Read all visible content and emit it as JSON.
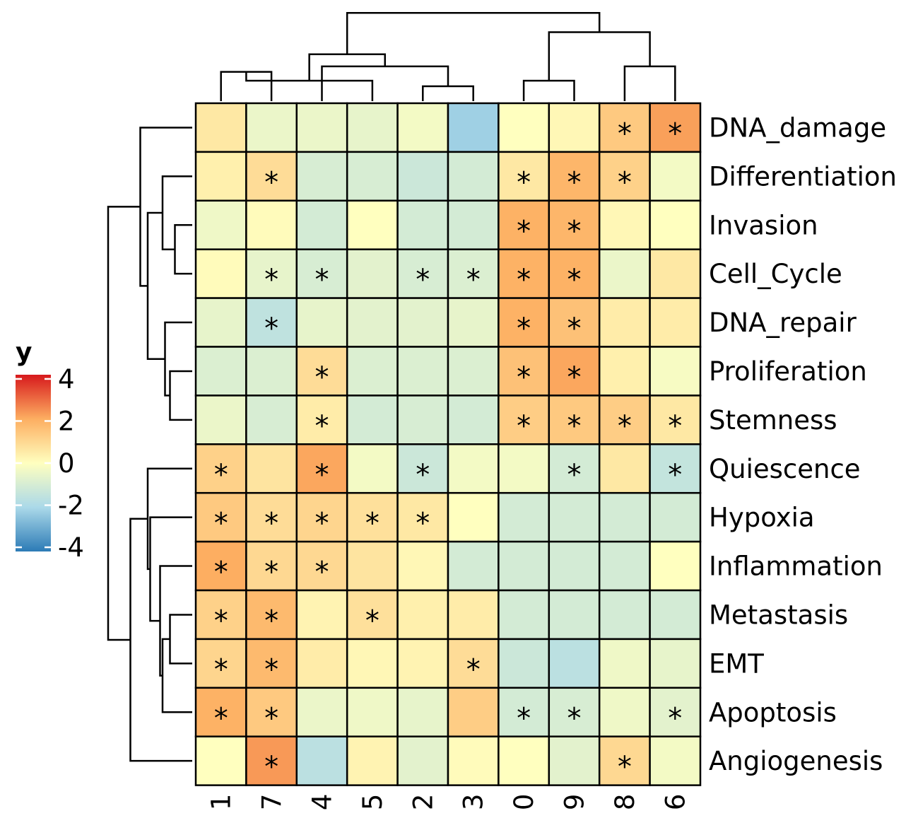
{
  "chart_data": {
    "type": "heatmap",
    "legend": {
      "title": "y",
      "breaks": [
        "4",
        "2",
        "0",
        "-2",
        "-4"
      ],
      "break_values": [
        4,
        2,
        0,
        -2,
        -4
      ],
      "limits": [
        -4.2,
        4.2
      ],
      "colors": [
        "#2c7bb6",
        "#abd9e9",
        "#ffffbf",
        "#fdae61",
        "#d7191c"
      ],
      "placement": "left"
    },
    "columns": [
      "1",
      "7",
      "4",
      "5",
      "2",
      "3",
      "0",
      "9",
      "8",
      "6"
    ],
    "rows": [
      "DNA_damage",
      "Differentiation",
      "Invasion",
      "Cell_Cycle",
      "DNA_repair",
      "Proliferation",
      "Stemness",
      "Quiescence",
      "Hypoxia",
      "Inflammation",
      "Metastasis",
      "EMT",
      "Apoptosis",
      "Angiogenesis"
    ],
    "values": [
      [
        0.6,
        -0.5,
        -0.5,
        -0.6,
        -0.3,
        -2.3,
        0.0,
        0.2,
        1.4,
        2.3
      ],
      [
        0.4,
        0.9,
        -1.0,
        -1.0,
        -1.3,
        -1.1,
        0.6,
        1.9,
        1.2,
        -0.3
      ],
      [
        -0.4,
        0.1,
        -1.1,
        0.0,
        -1.1,
        -1.1,
        2.0,
        1.9,
        0.2,
        0.0
      ],
      [
        0.1,
        -0.6,
        -1.0,
        -0.7,
        -1.0,
        -0.9,
        2.0,
        2.0,
        -0.5,
        0.6
      ],
      [
        -0.6,
        -1.6,
        -0.6,
        -0.7,
        -0.7,
        -0.6,
        2.0,
        1.6,
        0.5,
        0.5
      ],
      [
        -0.9,
        -0.9,
        0.9,
        -0.9,
        -0.9,
        -0.9,
        1.6,
        2.2,
        0.4,
        -0.2
      ],
      [
        -0.5,
        -1.0,
        0.5,
        -1.1,
        -1.0,
        -1.1,
        1.3,
        1.4,
        1.3,
        0.6
      ],
      [
        1.2,
        0.7,
        2.2,
        -0.3,
        -1.3,
        -0.3,
        -0.3,
        -1.1,
        0.6,
        -1.5
      ],
      [
        1.4,
        0.9,
        1.1,
        0.8,
        0.6,
        0.0,
        -1.1,
        -1.1,
        -1.1,
        -1.1
      ],
      [
        2.1,
        1.0,
        1.0,
        0.7,
        0.2,
        -1.1,
        -1.1,
        -1.1,
        -1.1,
        0.0
      ],
      [
        1.2,
        1.8,
        0.3,
        0.8,
        0.4,
        0.5,
        -1.1,
        -1.1,
        -1.1,
        -1.1
      ],
      [
        1.1,
        1.8,
        0.5,
        0.2,
        0.3,
        0.9,
        -1.3,
        -1.7,
        -0.4,
        -0.6
      ],
      [
        2.0,
        1.4,
        -0.5,
        -0.4,
        -0.6,
        1.3,
        -1.1,
        -1.0,
        -0.4,
        -0.7
      ],
      [
        0.0,
        2.4,
        -1.7,
        0.3,
        -0.7,
        0.1,
        0.0,
        -0.7,
        1.0,
        -0.3
      ]
    ],
    "significant": [
      [
        false,
        false,
        false,
        false,
        false,
        false,
        false,
        false,
        true,
        true
      ],
      [
        false,
        true,
        false,
        false,
        false,
        false,
        true,
        true,
        true,
        false
      ],
      [
        false,
        false,
        false,
        false,
        false,
        false,
        true,
        true,
        false,
        false
      ],
      [
        false,
        true,
        true,
        false,
        true,
        true,
        true,
        true,
        false,
        false
      ],
      [
        false,
        true,
        false,
        false,
        false,
        false,
        true,
        true,
        false,
        false
      ],
      [
        false,
        false,
        true,
        false,
        false,
        false,
        true,
        true,
        false,
        false
      ],
      [
        false,
        false,
        true,
        false,
        false,
        false,
        true,
        true,
        true,
        true
      ],
      [
        true,
        false,
        true,
        false,
        true,
        false,
        false,
        true,
        false,
        true
      ],
      [
        true,
        true,
        true,
        true,
        true,
        false,
        false,
        false,
        false,
        false
      ],
      [
        true,
        true,
        true,
        false,
        false,
        false,
        false,
        false,
        false,
        false
      ],
      [
        true,
        true,
        false,
        true,
        false,
        false,
        false,
        false,
        false,
        false
      ],
      [
        true,
        true,
        false,
        false,
        false,
        true,
        false,
        false,
        false,
        false
      ],
      [
        true,
        true,
        false,
        false,
        false,
        false,
        true,
        true,
        false,
        true
      ],
      [
        false,
        true,
        false,
        false,
        false,
        false,
        false,
        false,
        true,
        false
      ]
    ],
    "significance_marker": "*",
    "column_dendrogram": [
      [
        0,
        1,
        0.53
      ],
      [
        4,
        5,
        0.27
      ],
      [
        3,
        10,
        0.37
      ],
      [
        2,
        11,
        0.63
      ],
      [
        6,
        7,
        0.37
      ],
      [
        8,
        9,
        0.63
      ],
      [
        12,
        13,
        0.85
      ],
      [
        14,
        15,
        1.25
      ],
      [
        16,
        17,
        1.6
      ]
    ],
    "row_dendrogram": [
      [
        2,
        3,
        0.35
      ],
      [
        5,
        6,
        0.45
      ],
      [
        1,
        14,
        0.6
      ],
      [
        4,
        15,
        0.55
      ],
      [
        16,
        17,
        0.9
      ],
      [
        0,
        18,
        1.05
      ],
      [
        10,
        11,
        0.45
      ],
      [
        12,
        20,
        0.6
      ],
      [
        9,
        21,
        0.65
      ],
      [
        8,
        22,
        0.85
      ],
      [
        7,
        23,
        0.9
      ],
      [
        13,
        24,
        1.25
      ],
      [
        19,
        25,
        1.7
      ]
    ]
  }
}
